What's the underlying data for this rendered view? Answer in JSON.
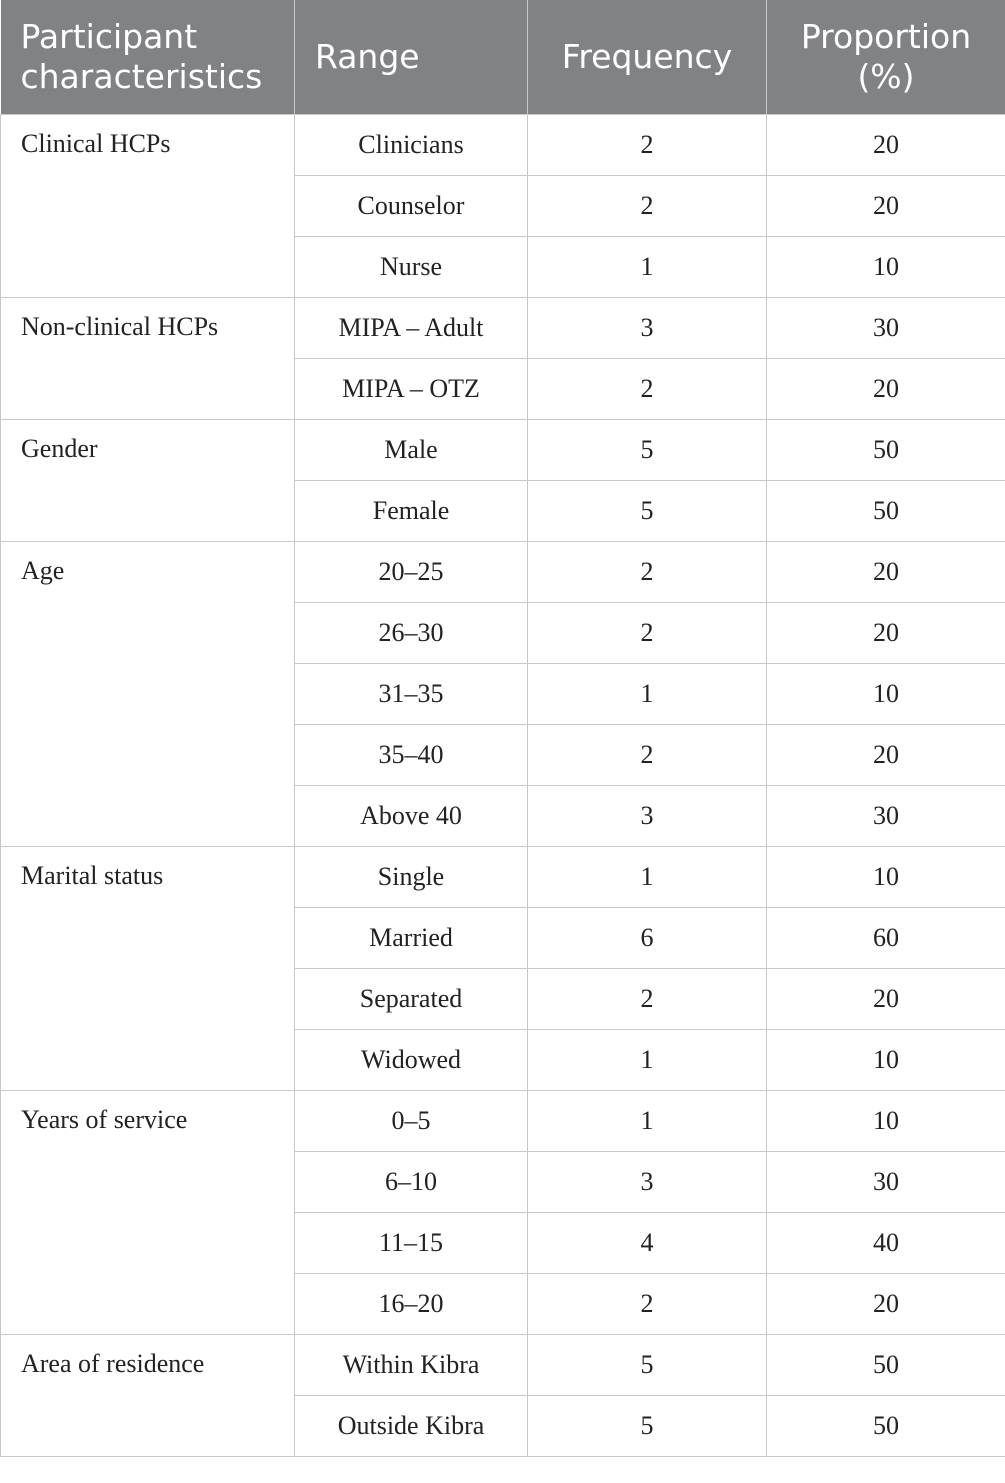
{
  "table": {
    "header": [
      "Participant characteristics",
      "Range",
      "Frequency",
      "Proportion (%)"
    ],
    "groups": [
      {
        "label": "Clinical HCPs",
        "rows": [
          [
            "Clinicians",
            2,
            20
          ],
          [
            "Counselor",
            2,
            20
          ],
          [
            "Nurse",
            1,
            10
          ]
        ]
      },
      {
        "label": "Non-clinical HCPs",
        "rows": [
          [
            "MIPA – Adult",
            3,
            30
          ],
          [
            "MIPA – OTZ",
            2,
            20
          ]
        ]
      },
      {
        "label": "Gender",
        "rows": [
          [
            "Male",
            5,
            50
          ],
          [
            "Female",
            5,
            50
          ]
        ]
      },
      {
        "label": "Age",
        "rows": [
          [
            "20–25",
            2,
            20
          ],
          [
            "26–30",
            2,
            20
          ],
          [
            "31–35",
            1,
            10
          ],
          [
            "35–40",
            2,
            20
          ],
          [
            "Above 40",
            3,
            30
          ]
        ]
      },
      {
        "label": "Marital status",
        "rows": [
          [
            "Single",
            1,
            10
          ],
          [
            "Married",
            6,
            60
          ],
          [
            "Separated",
            2,
            20
          ],
          [
            "Widowed",
            1,
            10
          ]
        ]
      },
      {
        "label": "Years of service",
        "rows": [
          [
            "0–5",
            1,
            10
          ],
          [
            "6–10",
            3,
            30
          ],
          [
            "11–15",
            4,
            40
          ],
          [
            "16–20",
            2,
            20
          ]
        ]
      },
      {
        "label": "Area of residence",
        "rows": [
          [
            "Within Kibra",
            5,
            50
          ],
          [
            "Outside Kibra",
            5,
            50
          ]
        ]
      }
    ]
  }
}
